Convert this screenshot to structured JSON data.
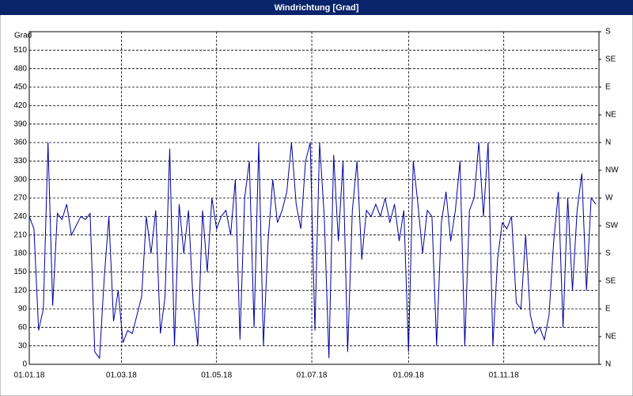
{
  "chart_data": {
    "type": "line",
    "title": "Windrichtung [Grad]",
    "y_label": "Grad",
    "color": "#0000a0",
    "grid": true,
    "xlim": [
      0,
      365
    ],
    "xticks": [
      {
        "value": 0,
        "label": "01.01.18"
      },
      {
        "value": 59,
        "label": "01.03.18"
      },
      {
        "value": 120,
        "label": "01.05.18"
      },
      {
        "value": 181,
        "label": "01.07.18"
      },
      {
        "value": 243,
        "label": "01.09.18"
      },
      {
        "value": 304,
        "label": "01.11.18"
      }
    ],
    "ylim": [
      0,
      540
    ],
    "yticks": [
      0,
      30,
      60,
      90,
      120,
      150,
      180,
      210,
      240,
      270,
      300,
      330,
      360,
      390,
      420,
      450,
      480,
      510
    ],
    "y2lim": [
      0,
      540
    ],
    "y2ticks": [
      {
        "value": 0,
        "label": "N"
      },
      {
        "value": 45,
        "label": "NE"
      },
      {
        "value": 90,
        "label": "E"
      },
      {
        "value": 135,
        "label": "SE"
      },
      {
        "value": 180,
        "label": "S"
      },
      {
        "value": 225,
        "label": "SW"
      },
      {
        "value": 270,
        "label": "W"
      },
      {
        "value": 315,
        "label": "NW"
      },
      {
        "value": 360,
        "label": "N"
      },
      {
        "value": 405,
        "label": "NE"
      },
      {
        "value": 450,
        "label": "E"
      },
      {
        "value": 495,
        "label": "SE"
      },
      {
        "value": 540,
        "label": "S"
      }
    ],
    "x": [
      0,
      3,
      6,
      9,
      12,
      15,
      18,
      21,
      24,
      27,
      30,
      33,
      36,
      39,
      42,
      45,
      48,
      51,
      54,
      57,
      60,
      63,
      66,
      69,
      72,
      75,
      78,
      81,
      84,
      87,
      90,
      93,
      96,
      99,
      102,
      105,
      108,
      111,
      114,
      117,
      120,
      123,
      126,
      129,
      132,
      135,
      138,
      141,
      144,
      147,
      150,
      153,
      156,
      159,
      162,
      165,
      168,
      171,
      174,
      177,
      180,
      183,
      186,
      189,
      192,
      195,
      198,
      201,
      204,
      207,
      210,
      213,
      216,
      219,
      222,
      225,
      228,
      231,
      234,
      237,
      240,
      243,
      246,
      249,
      252,
      255,
      258,
      261,
      264,
      267,
      270,
      273,
      276,
      279,
      282,
      285,
      288,
      291,
      294,
      297,
      300,
      303,
      306,
      309,
      312,
      315,
      318,
      321,
      324,
      327,
      330,
      333,
      336,
      339,
      342,
      345,
      348,
      351,
      354,
      357,
      360,
      363
    ],
    "values": [
      240,
      220,
      55,
      90,
      360,
      95,
      245,
      235,
      260,
      210,
      225,
      240,
      235,
      245,
      20,
      10,
      140,
      240,
      70,
      120,
      35,
      55,
      50,
      80,
      110,
      240,
      180,
      250,
      50,
      110,
      350,
      30,
      260,
      180,
      250,
      100,
      30,
      250,
      150,
      270,
      220,
      240,
      250,
      210,
      300,
      40,
      270,
      330,
      60,
      360,
      30,
      200,
      300,
      230,
      250,
      280,
      360,
      260,
      220,
      330,
      360,
      55,
      360,
      240,
      10,
      340,
      200,
      330,
      20,
      250,
      330,
      170,
      250,
      240,
      260,
      240,
      270,
      230,
      260,
      200,
      250,
      20,
      330,
      260,
      180,
      250,
      240,
      30,
      230,
      280,
      200,
      250,
      330,
      30,
      250,
      270,
      360,
      240,
      360,
      30,
      170,
      230,
      220,
      240,
      100,
      90,
      210,
      80,
      50,
      60,
      40,
      80,
      200,
      280,
      60,
      270,
      120,
      250,
      310,
      120,
      270,
      260
    ]
  }
}
